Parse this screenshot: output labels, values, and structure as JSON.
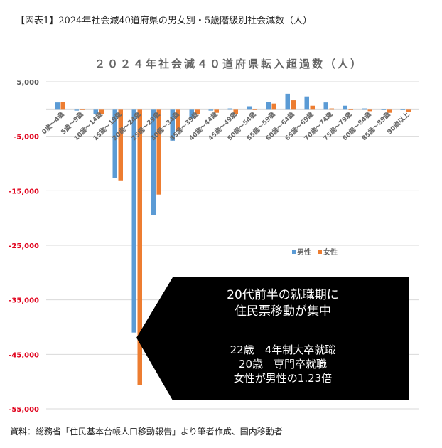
{
  "caption": "【図表1】2024年社会減40道府県の男女別・5歳階級別社会減数（人）",
  "source": "資料：総務省「住民基本台帳人口移動報告」より筆者作成、国内移動者",
  "chart_data": {
    "type": "bar",
    "title": "２０２４年社会減４０道府県転入超過数（人）",
    "categories": [
      "0歳～4歳",
      "5歳～9歳",
      "10歳～14歳",
      "15歳～19歳",
      "20歳～24歳",
      "25歳～29歳",
      "30歳～34歳",
      "35歳～39歳",
      "40歳～44歳",
      "45歳～49歳",
      "50歳～54歳",
      "55歳～59歳",
      "60歳～64歳",
      "65歳～69歳",
      "70歳～74歳",
      "75歳～79歳",
      "80歳～84歳",
      "85歳～89歳",
      "90歳以上"
    ],
    "series": [
      {
        "name": "男性",
        "color": "#5B9BD5",
        "values": [
          1200,
          -300,
          -1000,
          -12700,
          -41000,
          -19400,
          -5800,
          -1700,
          -300,
          100,
          500,
          1300,
          2800,
          2300,
          1200,
          600,
          100,
          -100,
          -100
        ]
      },
      {
        "name": "女性",
        "color": "#ED7D31",
        "values": [
          1300,
          -200,
          -1000,
          -13100,
          -50600,
          -15700,
          -4000,
          -900,
          -700,
          -1000,
          0,
          1000,
          1600,
          600,
          100,
          -200,
          -400,
          -700,
          -600
        ]
      }
    ],
    "ylim": [
      -55000,
      5000
    ],
    "yticks": [
      5000,
      -5000,
      -15000,
      -25000,
      -35000,
      -45000,
      -55000
    ],
    "ytick_labels": [
      "5,000",
      "-5,000",
      "-15,000",
      "-25,000",
      "-35,000",
      "-45,000",
      "-55,000"
    ],
    "negative_tick_color": "#E0001B",
    "grid": true,
    "legend_position": "right-middle",
    "annotation": {
      "headline": [
        "20代前半の就職期に",
        "住民票移動が集中"
      ],
      "details": [
        "22歳　4年制大卒就職",
        "20歳　専門卒就職",
        "女性が男性の1.23倍"
      ]
    }
  }
}
